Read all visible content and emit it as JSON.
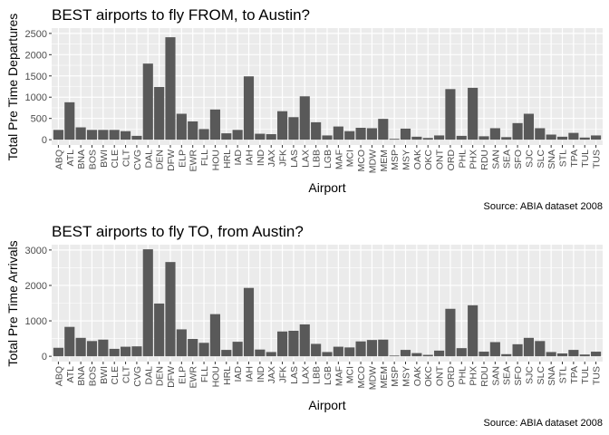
{
  "chart_data": [
    {
      "type": "bar",
      "title": "BEST airports to fly FROM, to Austin?",
      "xlabel": "Airport",
      "ylabel": "Total Pre Time Departures",
      "caption": "Source: ABIA dataset 2008",
      "ylim": [
        0,
        2500
      ],
      "yticks": [
        0,
        500,
        1000,
        1500,
        2000,
        2500
      ],
      "grid": true,
      "categories": [
        "ABQ",
        "ATL",
        "BNA",
        "BOS",
        "BWI",
        "CLE",
        "CLT",
        "CVG",
        "DAL",
        "DEN",
        "DFW",
        "ELP",
        "EWR",
        "FLL",
        "HOU",
        "HRL",
        "IAD",
        "IAH",
        "IND",
        "JAX",
        "JFK",
        "LAS",
        "LAX",
        "LBB",
        "LGB",
        "MAF",
        "MCI",
        "MCO",
        "MDW",
        "MEM",
        "MSP",
        "MSY",
        "OAK",
        "OKC",
        "ONT",
        "ORD",
        "PHL",
        "PHX",
        "RDU",
        "SAN",
        "SEA",
        "SFO",
        "SJC",
        "SLC",
        "SNA",
        "STL",
        "TPA",
        "TUL",
        "TUS"
      ],
      "values": [
        230,
        880,
        290,
        230,
        230,
        230,
        200,
        90,
        1790,
        1240,
        2410,
        610,
        430,
        250,
        710,
        150,
        230,
        1490,
        140,
        130,
        670,
        530,
        1020,
        410,
        100,
        310,
        200,
        280,
        270,
        490,
        20,
        260,
        70,
        40,
        100,
        1190,
        90,
        1220,
        80,
        270,
        60,
        390,
        610,
        270,
        120,
        70,
        160,
        50,
        100
      ]
    },
    {
      "type": "bar",
      "title": "BEST airports to fly TO, from Austin?",
      "xlabel": "Airport",
      "ylabel": "Total Pre Time Arrivals",
      "caption": "Source: ABIA dataset 2008",
      "ylim": [
        0,
        3000
      ],
      "yticks": [
        0,
        1000,
        2000,
        3000
      ],
      "grid": true,
      "categories": [
        "ABQ",
        "ATL",
        "BNA",
        "BOS",
        "BWI",
        "CLE",
        "CLT",
        "CVG",
        "DAL",
        "DEN",
        "DFW",
        "ELP",
        "EWR",
        "FLL",
        "HOU",
        "HRL",
        "IAD",
        "IAH",
        "IND",
        "JAX",
        "JFK",
        "LAS",
        "LAX",
        "LBB",
        "LGB",
        "MAF",
        "MCI",
        "MCO",
        "MDW",
        "MEM",
        "MSP",
        "MSY",
        "OAK",
        "OKC",
        "ONT",
        "ORD",
        "PHL",
        "PHX",
        "RDU",
        "SAN",
        "SEA",
        "SFO",
        "SJC",
        "SLC",
        "SNA",
        "STL",
        "TPA",
        "TUL",
        "TUS"
      ],
      "values": [
        240,
        830,
        520,
        430,
        470,
        210,
        270,
        280,
        3020,
        1490,
        2660,
        760,
        490,
        380,
        1190,
        180,
        410,
        1930,
        190,
        120,
        700,
        720,
        900,
        350,
        120,
        270,
        250,
        420,
        460,
        470,
        20,
        180,
        90,
        40,
        160,
        1340,
        230,
        1440,
        130,
        400,
        60,
        340,
        520,
        430,
        120,
        80,
        180,
        50,
        130
      ]
    }
  ]
}
